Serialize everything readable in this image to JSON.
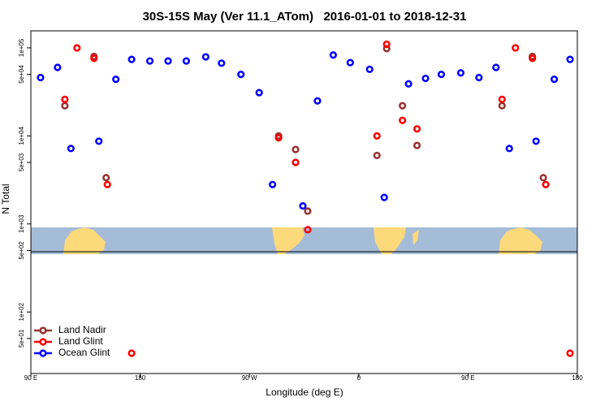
{
  "chart_data": {
    "type": "scatter",
    "title": "30S-15S May (Ver 11.1_ATom)   2016-01-01 to 2018-12-31",
    "x_label": "Longitude (deg E)",
    "y_label": "N Total",
    "log_y": true,
    "legend": "bottom-left",
    "xlim": [
      90,
      540
    ],
    "xticks": [
      {
        "value": 90,
        "label": "90 E"
      },
      180,
      {
        "value": 270,
        "label": "90 W"
      },
      {
        "value": 360,
        "label": "0"
      },
      {
        "value": 450,
        "label": "90 E"
      },
      {
        "value": 540,
        "label": "180"
      }
    ],
    "ylim": [
      20,
      156000
    ],
    "yticks": [
      {
        "value": 50,
        "label": "5e+01"
      },
      {
        "value": 100,
        "label": "1e+02"
      },
      {
        "value": 500,
        "label": "5e+02"
      },
      {
        "value": 1000,
        "label": "1e+03"
      },
      {
        "value": 5000,
        "label": "5e+03"
      },
      {
        "value": 10000,
        "label": "1e+04"
      },
      {
        "value": 50000,
        "label": "5e+04"
      },
      {
        "value": 100000,
        "label": "1e+05"
      }
    ],
    "series": [
      {
        "name": "Land Nadir",
        "color": "#993333",
        "x": [
          118,
          142,
          152,
          294,
          308,
          318,
          375,
          383,
          396,
          408,
          478,
          503,
          512
        ],
        "values": [
          22000,
          80000,
          3350,
          10000,
          7000,
          1400,
          6000,
          98000,
          22000,
          7800,
          22000,
          80000,
          3350
        ]
      },
      {
        "name": "Land Glint",
        "color": "#ff0000",
        "x": [
          118,
          128,
          142,
          153,
          173,
          294,
          308,
          318,
          375,
          383,
          396,
          408,
          478,
          489,
          503,
          514,
          534
        ],
        "values": [
          26000,
          100000,
          76000,
          2800,
          34,
          9500,
          5000,
          860,
          10000,
          110000,
          15000,
          12000,
          26000,
          100000,
          76000,
          2800,
          34
        ]
      },
      {
        "name": "Ocean Glint",
        "color": "#0000ff",
        "x": [
          98,
          112,
          123,
          146,
          160,
          173,
          188,
          203,
          218,
          234,
          247,
          263,
          278,
          289,
          314,
          326,
          339,
          353,
          369,
          381,
          401,
          415,
          428,
          444,
          459,
          473,
          484,
          506,
          521,
          534
        ],
        "values": [
          46000,
          60000,
          7200,
          8700,
          44000,
          74000,
          71000,
          71000,
          71000,
          79000,
          67000,
          50000,
          31000,
          2800,
          1600,
          25000,
          83000,
          68000,
          57000,
          2000,
          39000,
          45000,
          50000,
          52000,
          46000,
          60000,
          7200,
          8700,
          44000,
          74000
        ]
      }
    ]
  }
}
